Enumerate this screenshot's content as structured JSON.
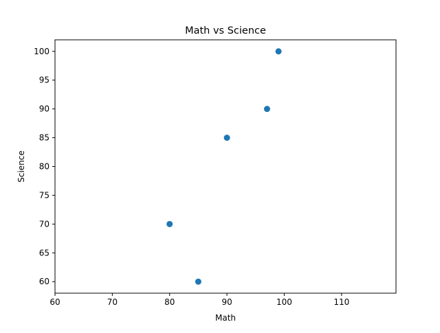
{
  "chart_data": {
    "type": "scatter",
    "title": "Math vs Science",
    "xlabel": "Math",
    "ylabel": "Science",
    "xlim": [
      60,
      119.5
    ],
    "ylim": [
      58,
      102
    ],
    "xticks": [
      60,
      70,
      80,
      90,
      100,
      110
    ],
    "yticks": [
      60,
      65,
      70,
      75,
      80,
      85,
      90,
      95,
      100
    ],
    "grid": false,
    "series": [
      {
        "points": [
          {
            "x": 80,
            "y": 70
          },
          {
            "x": 85,
            "y": 60
          },
          {
            "x": 90,
            "y": 85
          },
          {
            "x": 97,
            "y": 90
          },
          {
            "x": 99,
            "y": 100
          }
        ],
        "color": "#1f77b4"
      }
    ]
  }
}
